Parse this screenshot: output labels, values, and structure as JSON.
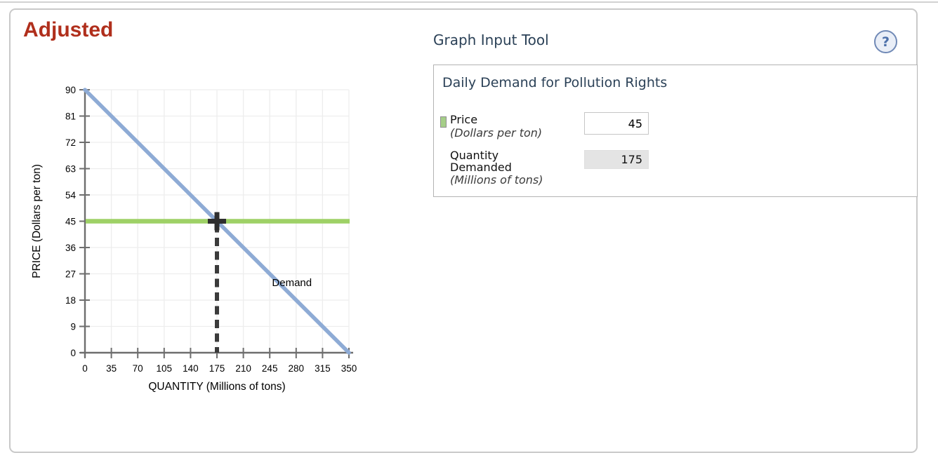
{
  "page": {
    "title": "Adjusted"
  },
  "graph_input_tool": {
    "header": "Graph Input Tool",
    "help_icon": "?",
    "panel": {
      "title": "Daily Demand for Pollution Rights",
      "fields": {
        "price": {
          "label": "Price",
          "sublabel": "(Dollars per ton)",
          "value": "45"
        },
        "quantity": {
          "label_line1": "Quantity",
          "label_line2": "Demanded",
          "sublabel": "(Millions of tons)",
          "value": "175"
        }
      }
    }
  },
  "colors": {
    "demand_line_blue": "#8eabd5",
    "price_line_green": "#9ed166",
    "marker_dark": "#2f2f2f",
    "dashed_line": "#3b3b3b",
    "axis_gray": "#6e6e6e",
    "grid_gray": "#ededed",
    "title_red": "#b02f1c",
    "header_navy": "#2b4157",
    "legend_marker_green": "#a5ce88"
  },
  "chart_data": {
    "type": "line",
    "title": "",
    "xlabel": "QUANTITY (Millions of tons)",
    "ylabel": "PRICE (Dollars per ton)",
    "xlim": [
      0,
      350
    ],
    "ylim": [
      0,
      90
    ],
    "xticks": [
      0,
      35,
      70,
      105,
      140,
      175,
      210,
      245,
      280,
      315,
      350
    ],
    "yticks": [
      0,
      9,
      18,
      27,
      36,
      45,
      54,
      63,
      72,
      81,
      90
    ],
    "grid": true,
    "legend_position": "inline-label",
    "series": [
      {
        "name": "Demand",
        "points": [
          [
            0,
            90
          ],
          [
            350,
            0
          ]
        ],
        "label_pos": [
          248,
          24
        ]
      }
    ],
    "price_line": {
      "value": 45
    },
    "quantity_marker": {
      "x": 175,
      "y": 45
    }
  }
}
